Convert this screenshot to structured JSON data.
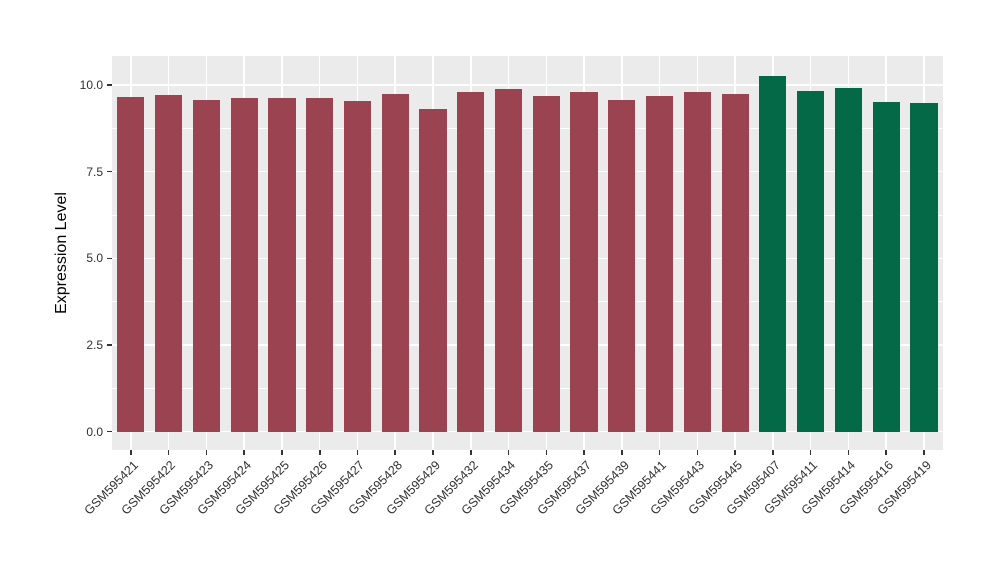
{
  "chart_data": {
    "type": "bar",
    "title": "",
    "xlabel": "",
    "ylabel": "Expression Level",
    "ylim": [
      -0.53,
      10.84
    ],
    "yticks": [
      0.0,
      2.5,
      5.0,
      7.5,
      10.0
    ],
    "ytick_labels": [
      "0.0",
      "2.5",
      "5.0",
      "7.5",
      "10.0"
    ],
    "minor_yticks": [
      1.25,
      3.75,
      6.25,
      8.75
    ],
    "grid": "major and minor horizontal white gridlines, vertical white gridline at each bar center",
    "legend_position": "none",
    "panel_background": "#EBEBEB",
    "gridline_color": "#ffffff",
    "tick_color": "#333333",
    "group_colors": {
      "group1": "#9C4351",
      "group2": "#046947"
    },
    "categories": [
      "GSM595421",
      "GSM595422",
      "GSM595423",
      "GSM595424",
      "GSM595425",
      "GSM595426",
      "GSM595427",
      "GSM595428",
      "GSM595429",
      "GSM595432",
      "GSM595434",
      "GSM595435",
      "GSM595437",
      "GSM595439",
      "GSM595441",
      "GSM595443",
      "GSM595445",
      "GSM595407",
      "GSM595411",
      "GSM595414",
      "GSM595416",
      "GSM595419"
    ],
    "points": [
      {
        "label": "GSM595421",
        "value": 9.65,
        "group": "group1"
      },
      {
        "label": "GSM595422",
        "value": 9.71,
        "group": "group1"
      },
      {
        "label": "GSM595423",
        "value": 9.57,
        "group": "group1"
      },
      {
        "label": "GSM595424",
        "value": 9.63,
        "group": "group1"
      },
      {
        "label": "GSM595425",
        "value": 9.63,
        "group": "group1"
      },
      {
        "label": "GSM595426",
        "value": 9.62,
        "group": "group1"
      },
      {
        "label": "GSM595427",
        "value": 9.53,
        "group": "group1"
      },
      {
        "label": "GSM595428",
        "value": 9.74,
        "group": "group1"
      },
      {
        "label": "GSM595429",
        "value": 9.32,
        "group": "group1"
      },
      {
        "label": "GSM595432",
        "value": 9.8,
        "group": "group1"
      },
      {
        "label": "GSM595434",
        "value": 9.89,
        "group": "group1"
      },
      {
        "label": "GSM595435",
        "value": 9.69,
        "group": "group1"
      },
      {
        "label": "GSM595437",
        "value": 9.79,
        "group": "group1"
      },
      {
        "label": "GSM595439",
        "value": 9.56,
        "group": "group1"
      },
      {
        "label": "GSM595441",
        "value": 9.67,
        "group": "group1"
      },
      {
        "label": "GSM595443",
        "value": 9.79,
        "group": "group1"
      },
      {
        "label": "GSM595445",
        "value": 9.73,
        "group": "group1"
      },
      {
        "label": "GSM595407",
        "value": 10.27,
        "group": "group2"
      },
      {
        "label": "GSM595411",
        "value": 9.84,
        "group": "group2"
      },
      {
        "label": "GSM595414",
        "value": 9.9,
        "group": "group2"
      },
      {
        "label": "GSM595416",
        "value": 9.5,
        "group": "group2"
      },
      {
        "label": "GSM595419",
        "value": 9.48,
        "group": "group2"
      }
    ]
  }
}
